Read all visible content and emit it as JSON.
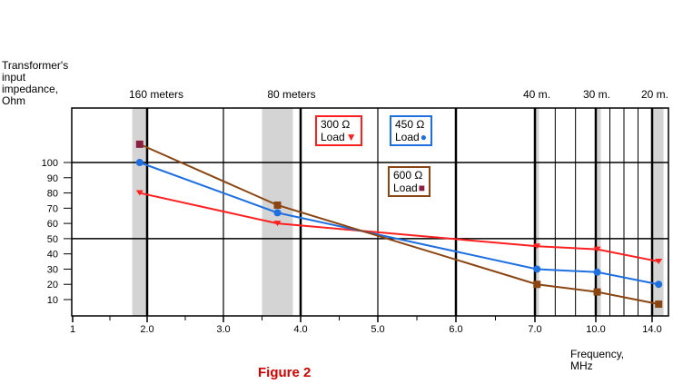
{
  "chart_data": {
    "type": "line",
    "title": "Figure 2",
    "ylabel": "Transformer's input impedance, Ohm",
    "xlabel": "Frequency, MHz",
    "x_ticks": [
      "1",
      "2.0",
      "3.0",
      "4.0",
      "5.0",
      "6.0",
      "7.0",
      "10.0",
      "14.0"
    ],
    "y_ticks": [
      "10",
      "20",
      "30",
      "40",
      "50",
      "60",
      "70",
      "80",
      "90",
      "100"
    ],
    "bands": [
      {
        "label": "160 meters",
        "range": [
          1.8,
          2.0
        ]
      },
      {
        "label": "80 meters",
        "range": [
          3.5,
          3.9
        ]
      },
      {
        "label": "40 m.",
        "range": [
          7.0,
          7.2
        ]
      },
      {
        "label": "30 m.",
        "range": [
          10.1,
          10.15
        ]
      },
      {
        "label": "20 m.",
        "range": [
          14.0,
          14.35
        ]
      }
    ],
    "series": [
      {
        "name": "300 Ω Load",
        "color": "#ff2020",
        "marker": "triangle-down",
        "x": [
          1.9,
          3.7,
          7.1,
          10.1,
          14.2
        ],
        "y": [
          80,
          60,
          45,
          43,
          35
        ]
      },
      {
        "name": "450 Ω Load",
        "color": "#1e6fe0",
        "marker": "circle",
        "x": [
          1.9,
          3.7,
          7.1,
          10.1,
          14.2
        ],
        "y": [
          100,
          67,
          30,
          28,
          20
        ]
      },
      {
        "name": "600 Ω Load",
        "color": "#8b4513",
        "marker": "square",
        "x": [
          1.9,
          3.7,
          7.1,
          10.1,
          14.2
        ],
        "y": [
          112,
          72,
          20,
          15,
          7
        ]
      }
    ],
    "legend": [
      {
        "line1": "300 Ω",
        "line2": "Load",
        "symbol": "▼",
        "border": "#ff2020",
        "symcolor": "#ff2020"
      },
      {
        "line1": "450 Ω",
        "line2": "Load",
        "symbol": "●",
        "border": "#1e6fe0",
        "symcolor": "#1e6fe0"
      },
      {
        "line1": "600 Ω",
        "line2": "Load",
        "symbol": "■",
        "border": "#8b4513",
        "symcolor": "#8b2040"
      }
    ],
    "grid": true
  },
  "labels": {
    "ylabel_text": "Transformer's\ninput\nimpedance,\nOhm",
    "xlabel_text": "Frequency,\nMHz",
    "caption": "Figure 2"
  }
}
